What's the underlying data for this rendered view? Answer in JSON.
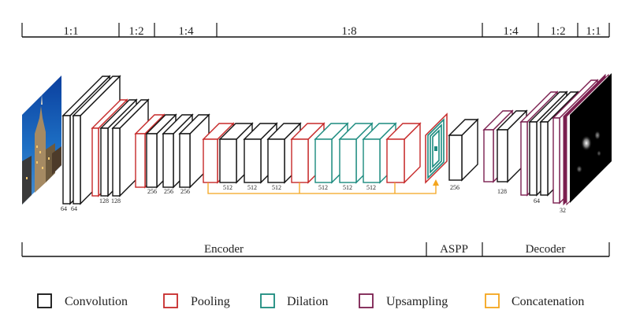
{
  "colors": {
    "convolution": "#111111",
    "pooling": "#c62828",
    "dilation": "#1a8a7e",
    "upsampling": "#7b1f4f",
    "concatenation": "#f4a51c"
  },
  "scale_bar": {
    "segments": [
      "1:1",
      "1:2",
      "1:4",
      "1:8",
      "1:4",
      "1:2",
      "1:1"
    ]
  },
  "sections": [
    "Encoder",
    "ASPP",
    "Decoder"
  ],
  "channels": {
    "c64a": "64",
    "c64b": "64",
    "c128a": "128",
    "c128b": "128",
    "c256a": "256",
    "c256b": "256",
    "c256c": "256",
    "c512a": "512",
    "c512b": "512",
    "c512c": "512",
    "c512d": "512",
    "c512e": "512",
    "c512f": "512",
    "c256d": "256",
    "c128c": "128",
    "c64c": "64",
    "c32": "32"
  },
  "legend": [
    {
      "label": "Convolution",
      "color": "#111111"
    },
    {
      "label": "Pooling",
      "color": "#c62828"
    },
    {
      "label": "Dilation",
      "color": "#1a8a7e"
    },
    {
      "label": "Upsampling",
      "color": "#7b1f4f"
    },
    {
      "label": "Concatenation",
      "color": "#f4a51c"
    }
  ],
  "images": {
    "input": "input-city-photo",
    "output": "output-heatmap"
  }
}
